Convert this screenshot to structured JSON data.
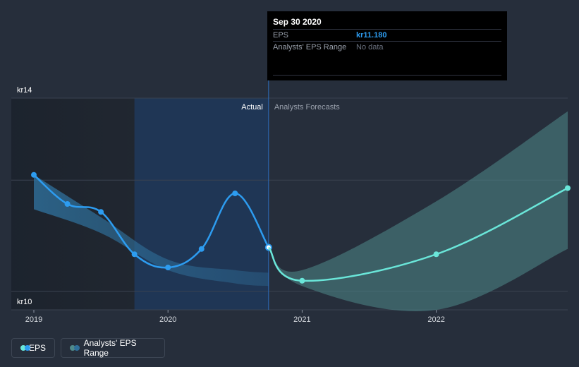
{
  "tooltip": {
    "date": "Sep 30 2020",
    "rows": [
      {
        "label": "EPS",
        "value": "kr11.180"
      },
      {
        "label": "Analysts' EPS Range",
        "value": "No data"
      }
    ]
  },
  "labels": {
    "actual": "Actual",
    "forecast": "Analysts Forecasts"
  },
  "legend": [
    {
      "label": "EPS",
      "color": "#2d9cf0",
      "color2": "#6ae6d9"
    },
    {
      "label": "Analysts' EPS Range",
      "color": "#2f6f9a",
      "color2": "#4f8a8b"
    }
  ],
  "colors": {
    "background": "#262e3b",
    "actual_line": "#2d9cf0",
    "forecast_line": "#6ae6d9",
    "actual_band": "#2f6f9a",
    "forecast_band": "#4f8a8b",
    "highlight": "#1e3a5f"
  },
  "chart_data": {
    "type": "line",
    "xlabel": "",
    "ylabel": "",
    "x_ticks": [
      "2019",
      "2020",
      "2021",
      "2022"
    ],
    "y_ticks": [
      "kr14",
      "kr10"
    ],
    "xlim": [
      2019.0,
      2022.98
    ],
    "ylim": [
      10,
      14
    ],
    "grid": true,
    "series": [
      {
        "name": "EPS",
        "kind": "actual",
        "points": [
          [
            2019.0,
            12.55
          ],
          [
            2019.25,
            12.0
          ],
          [
            2019.5,
            11.85
          ],
          [
            2019.75,
            11.05
          ],
          [
            2020.0,
            10.8
          ],
          [
            2020.25,
            11.15
          ],
          [
            2020.5,
            12.2
          ],
          [
            2020.75,
            11.18
          ]
        ]
      },
      {
        "name": "EPS",
        "kind": "forecast",
        "points": [
          [
            2020.75,
            11.18
          ],
          [
            2021.0,
            10.55
          ],
          [
            2022.0,
            11.05
          ],
          [
            2022.98,
            12.3
          ]
        ]
      }
    ],
    "ranges": [
      {
        "name": "Analysts' EPS Range",
        "kind": "actual",
        "upper": [
          [
            2019.0,
            12.55
          ],
          [
            2019.5,
            11.75
          ],
          [
            2020.0,
            10.95
          ],
          [
            2020.5,
            10.75
          ],
          [
            2020.75,
            10.7
          ]
        ],
        "lower": [
          [
            2019.0,
            11.9
          ],
          [
            2019.5,
            11.45
          ],
          [
            2020.0,
            10.75
          ],
          [
            2020.5,
            10.5
          ],
          [
            2020.75,
            10.45
          ]
        ]
      },
      {
        "name": "Analysts' EPS Range",
        "kind": "forecast",
        "upper": [
          [
            2020.75,
            11.18
          ],
          [
            2021.0,
            10.75
          ],
          [
            2022.0,
            12.05
          ],
          [
            2022.98,
            13.75
          ]
        ],
        "lower": [
          [
            2020.75,
            11.18
          ],
          [
            2021.0,
            10.45
          ],
          [
            2022.0,
            10.0
          ],
          [
            2022.98,
            11.15
          ]
        ]
      }
    ],
    "highlight_range": [
      2019.75,
      2020.75
    ],
    "shaded_past_range": [
      2019.0,
      2019.75
    ],
    "divider_x": 2020.75
  }
}
